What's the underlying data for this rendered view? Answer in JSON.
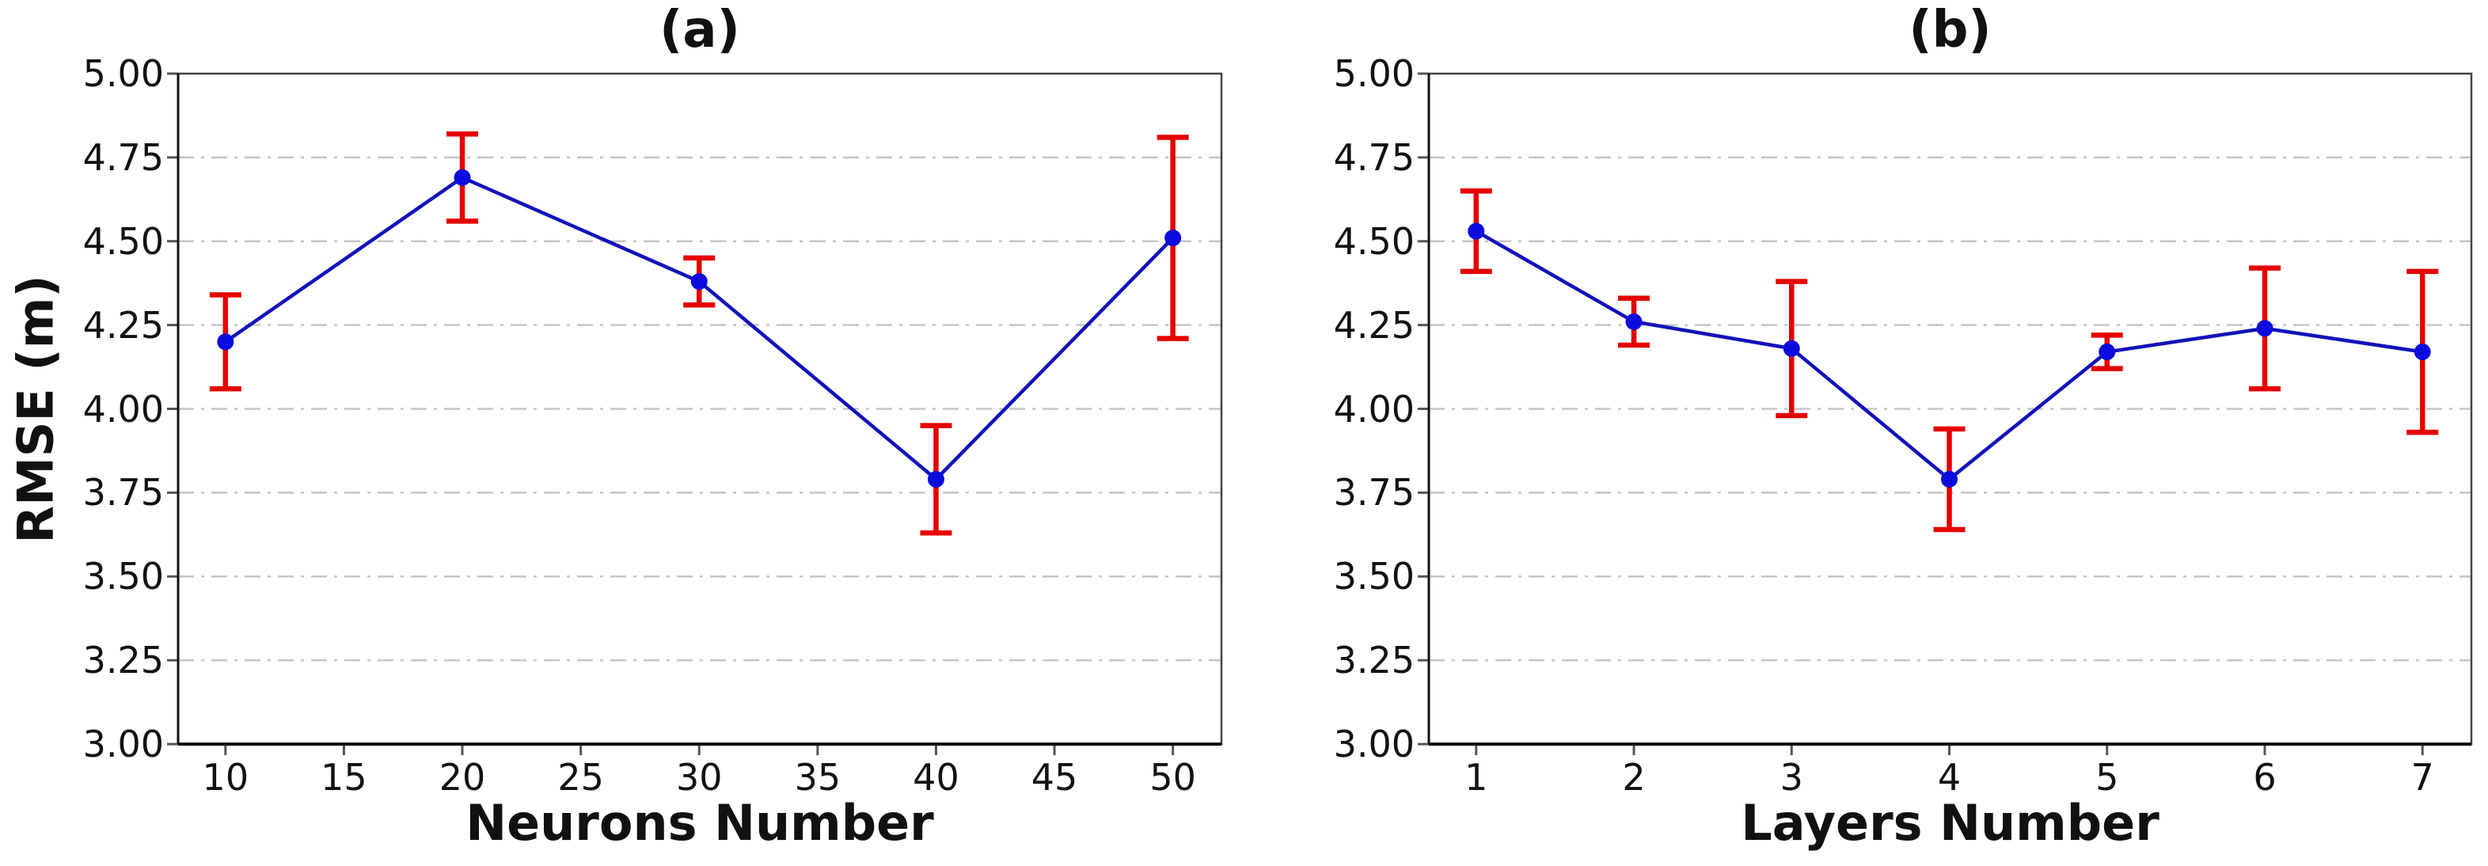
{
  "figure": {
    "background": "#ffffff",
    "grid_color": "#c6c6c6",
    "spine_color": "#444444",
    "axis_line_color": "#111111",
    "tick_color": "#555555"
  },
  "chart_data": [
    {
      "type": "line",
      "title": "(a)",
      "xlabel": "Neurons Number",
      "ylabel": "RMSE (m)",
      "x": [
        10,
        20,
        30,
        40,
        50
      ],
      "y": [
        4.2,
        4.69,
        4.38,
        3.79,
        4.51
      ],
      "yerr": [
        0.14,
        0.13,
        0.07,
        0.16,
        0.3
      ],
      "xticks": [
        10,
        15,
        20,
        25,
        30,
        35,
        40,
        45,
        50
      ],
      "xtick_labels": [
        "10",
        "15",
        "20",
        "25",
        "30",
        "35",
        "40",
        "45",
        "50"
      ],
      "yticks": [
        3.0,
        3.25,
        3.5,
        3.75,
        4.0,
        4.25,
        4.5,
        4.75,
        5.0
      ],
      "ytick_labels": [
        "3.00",
        "3.25",
        "3.50",
        "3.75",
        "4.00",
        "4.25",
        "4.50",
        "4.75",
        "5.00"
      ],
      "xlim": [
        8.0,
        52.05
      ],
      "ylim": [
        3.0,
        5.0
      ],
      "grid": "horizontal-dash-dot",
      "legend": "none",
      "line_color": "#1212bb",
      "marker_color": "#0b0bdd",
      "error_color": "#e60000"
    },
    {
      "type": "line",
      "title": "(b)",
      "xlabel": "Layers Number",
      "x": [
        1,
        2,
        3,
        4,
        5,
        6,
        7
      ],
      "y": [
        4.53,
        4.26,
        4.18,
        3.79,
        4.17,
        4.24,
        4.17
      ],
      "yerr": [
        0.12,
        0.07,
        0.2,
        0.15,
        0.05,
        0.18,
        0.24
      ],
      "xticks": [
        1,
        2,
        3,
        4,
        5,
        6,
        7
      ],
      "xtick_labels": [
        "1",
        "2",
        "3",
        "4",
        "5",
        "6",
        "7"
      ],
      "yticks": [
        3.0,
        3.25,
        3.5,
        3.75,
        4.0,
        4.25,
        4.5,
        4.75,
        5.0
      ],
      "ytick_labels": [
        "3.00",
        "3.25",
        "3.50",
        "3.75",
        "4.00",
        "4.25",
        "4.50",
        "4.75",
        "5.00"
      ],
      "xlim": [
        0.7,
        7.31
      ],
      "ylim": [
        3.0,
        5.0
      ],
      "grid": "horizontal-dash-dot",
      "legend": "none",
      "line_color": "#1212bb",
      "marker_color": "#0b0bdd",
      "error_color": "#e60000"
    }
  ]
}
